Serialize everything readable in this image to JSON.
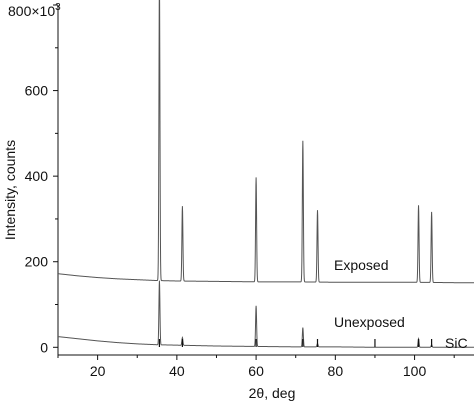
{
  "chart_data": {
    "type": "line",
    "title": "",
    "xlabel": "2θ, deg",
    "ylabel": "Intensity, counts",
    "y_multiplier_label": "×10",
    "y_multiplier_exponent": "3",
    "xlim": [
      10,
      115
    ],
    "ylim": [
      -18,
      800
    ],
    "x_ticks": [
      20,
      40,
      60,
      80,
      100
    ],
    "y_ticks": [
      0,
      200,
      400,
      600,
      800
    ],
    "y_tick_labels": [
      "0",
      "200",
      "400",
      "600",
      "800"
    ],
    "series": [
      {
        "name": "Exposed",
        "color": "#555555",
        "baseline": {
          "x": [
            10,
            15,
            20,
            25,
            30,
            35,
            40,
            50,
            60,
            70,
            80,
            90,
            100,
            110,
            115
          ],
          "y": [
            172,
            167,
            163,
            160,
            158,
            156,
            155,
            154,
            153,
            153,
            152,
            152,
            152,
            151,
            151
          ]
        },
        "peaks": [
          {
            "x": 35.6,
            "height": 700
          },
          {
            "x": 41.4,
            "height": 175
          },
          {
            "x": 60.0,
            "height": 244
          },
          {
            "x": 71.8,
            "height": 330
          },
          {
            "x": 75.5,
            "height": 168
          },
          {
            "x": 101.0,
            "height": 180
          },
          {
            "x": 104.3,
            "height": 165
          }
        ]
      },
      {
        "name": "Unexposed",
        "color": "#555555",
        "baseline": {
          "x": [
            10,
            15,
            20,
            25,
            30,
            35,
            40,
            50,
            60,
            70,
            80,
            90,
            100,
            110,
            115
          ],
          "y": [
            25,
            20,
            15,
            11,
            8,
            6,
            5,
            3,
            2,
            1,
            1,
            0,
            0,
            0,
            0
          ]
        },
        "peaks": [
          {
            "x": 35.6,
            "height": 150
          },
          {
            "x": 41.4,
            "height": 18
          },
          {
            "x": 60.0,
            "height": 95
          },
          {
            "x": 71.8,
            "height": 45
          },
          {
            "x": 75.5,
            "height": 8
          },
          {
            "x": 101.0,
            "height": 20
          },
          {
            "x": 104.3,
            "height": 6
          }
        ]
      }
    ],
    "reference": {
      "name": "SiC",
      "positions": [
        35.6,
        41.4,
        60.0,
        71.8,
        75.5,
        90.0,
        101.0,
        104.3
      ]
    },
    "grid": false,
    "legend": "inline labels"
  }
}
